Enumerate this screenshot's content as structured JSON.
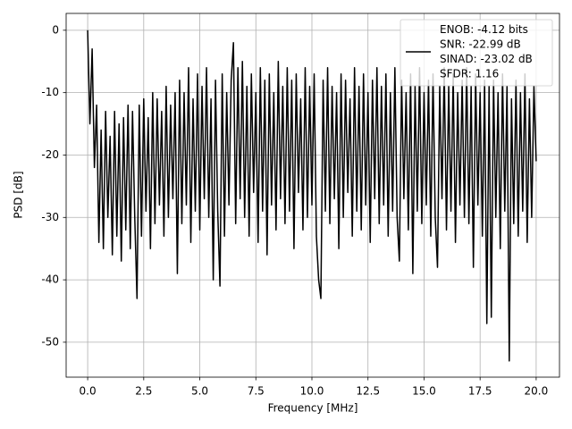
{
  "chart_data": {
    "type": "line",
    "xlabel": "Frequency [MHz]",
    "ylabel": "PSD [dB]",
    "x": [
      0,
      0.1,
      0.2,
      0.3,
      0.4,
      0.5,
      0.6,
      0.7,
      0.8,
      0.9,
      1,
      1.1,
      1.2,
      1.3,
      1.4,
      1.5,
      1.6,
      1.7,
      1.8,
      1.9,
      2,
      2.1,
      2.2,
      2.3,
      2.4,
      2.5,
      2.6,
      2.7,
      2.8,
      2.9,
      3,
      3.1,
      3.2,
      3.3,
      3.4,
      3.5,
      3.6,
      3.7,
      3.8,
      3.9,
      4,
      4.1,
      4.2,
      4.3,
      4.4,
      4.5,
      4.6,
      4.7,
      4.8,
      4.9,
      5,
      5.1,
      5.2,
      5.3,
      5.4,
      5.5,
      5.6,
      5.7,
      5.8,
      5.9,
      6,
      6.1,
      6.2,
      6.3,
      6.4,
      6.5,
      6.6,
      6.7,
      6.8,
      6.9,
      7,
      7.1,
      7.2,
      7.3,
      7.4,
      7.5,
      7.6,
      7.7,
      7.8,
      7.9,
      8,
      8.1,
      8.2,
      8.3,
      8.4,
      8.5,
      8.6,
      8.7,
      8.8,
      8.9,
      9,
      9.1,
      9.2,
      9.3,
      9.4,
      9.5,
      9.6,
      9.7,
      9.8,
      9.9,
      10,
      10.1,
      10.2,
      10.3,
      10.4,
      10.5,
      10.6,
      10.7,
      10.8,
      10.9,
      11,
      11.1,
      11.2,
      11.3,
      11.4,
      11.5,
      11.6,
      11.7,
      11.8,
      11.9,
      12,
      12.1,
      12.2,
      12.3,
      12.4,
      12.5,
      12.6,
      12.7,
      12.8,
      12.9,
      13,
      13.1,
      13.2,
      13.3,
      13.4,
      13.5,
      13.6,
      13.7,
      13.8,
      13.9,
      14,
      14.1,
      14.2,
      14.3,
      14.4,
      14.5,
      14.6,
      14.7,
      14.8,
      14.9,
      15,
      15.1,
      15.2,
      15.3,
      15.4,
      15.5,
      15.6,
      15.7,
      15.8,
      15.9,
      16,
      16.1,
      16.2,
      16.3,
      16.4,
      16.5,
      16.6,
      16.7,
      16.8,
      16.9,
      17,
      17.1,
      17.2,
      17.3,
      17.4,
      17.5,
      17.6,
      17.7,
      17.8,
      17.9,
      18,
      18.1,
      18.2,
      18.3,
      18.4,
      18.5,
      18.6,
      18.7,
      18.8,
      18.9,
      19,
      19.1,
      19.2,
      19.3,
      19.4,
      19.5,
      19.6,
      19.7,
      19.8,
      19.9,
      20
    ],
    "series": [
      {
        "name": "ENOB: -4.12 bits\nSNR: -22.99 dB\nSINAD: -23.02 dB\nSFDR: 1.16",
        "color": "#000000",
        "values": [
          0,
          -15,
          -3,
          -22,
          -12,
          -34,
          -16,
          -35,
          -13,
          -30,
          -17,
          -36,
          -13,
          -33,
          -15,
          -37,
          -14,
          -32,
          -12,
          -35,
          -13,
          -30,
          -43,
          -12,
          -33,
          -11,
          -29,
          -14,
          -35,
          -10,
          -31,
          -11,
          -28,
          -13,
          -33,
          -9,
          -30,
          -12,
          -27,
          -10,
          -39,
          -8,
          -31,
          -10,
          -28,
          -6,
          -34,
          -11,
          -29,
          -7,
          -32,
          -9,
          -27,
          -6,
          -30,
          -11,
          -40,
          -8,
          -29,
          -41,
          -7,
          -33,
          -10,
          -28,
          -8,
          -2,
          -31,
          -6,
          -27,
          -5,
          -30,
          -9,
          -33,
          -7,
          -26,
          -10,
          -34,
          -6,
          -29,
          -8,
          -36,
          -7,
          -28,
          -10,
          -32,
          -5,
          -27,
          -9,
          -31,
          -6,
          -29,
          -8,
          -35,
          -7,
          -26,
          -11,
          -32,
          -6,
          -30,
          -9,
          -28,
          -7,
          -33,
          -40,
          -43,
          -8,
          -29,
          -6,
          -31,
          -9,
          -27,
          -10,
          -35,
          -7,
          -30,
          -8,
          -26,
          -11,
          -33,
          -6,
          -29,
          -9,
          -32,
          -7,
          -28,
          -10,
          -34,
          -8,
          -27,
          -6,
          -31,
          -9,
          -28,
          -7,
          -33,
          -10,
          -29,
          -6,
          -30,
          -37,
          -8,
          -27,
          -10,
          -32,
          -7,
          -39,
          -9,
          -29,
          -6,
          -31,
          -10,
          -28,
          -8,
          -33,
          -7,
          -30,
          -38,
          -9,
          -27,
          -6,
          -32,
          -9,
          -29,
          -7,
          -34,
          -10,
          -28,
          -8,
          -30,
          -6,
          -31,
          -9,
          -38,
          -7,
          -28,
          -10,
          -33,
          -8,
          -47,
          -9,
          -46,
          -8,
          -30,
          -10,
          -35,
          -7,
          -29,
          -9,
          -53,
          -11,
          -31,
          -8,
          -33,
          -10,
          -29,
          -7,
          -34,
          -11,
          -30,
          -9,
          -21
        ]
      }
    ],
    "xlim": [
      -0.96,
      21.04
    ],
    "ylim": [
      -55.6,
      2.7
    ],
    "xticks": [
      {
        "value": 0,
        "label": "0.0"
      },
      2.5,
      {
        "value": 5,
        "label": "5.0"
      },
      7.5,
      {
        "value": 10,
        "label": "10.0"
      },
      12.5,
      {
        "value": 15,
        "label": "15.0"
      },
      17.5,
      {
        "value": 20,
        "label": "20.0"
      }
    ],
    "yticks": [
      0,
      -10,
      -20,
      -30,
      -40,
      -50
    ],
    "grid": true,
    "legend": "upper right"
  }
}
